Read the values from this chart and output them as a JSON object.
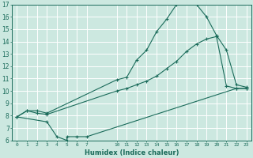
{
  "xlabel": "Humidex (Indice chaleur)",
  "bg_color": "#cce8e0",
  "line_color": "#1a6b5a",
  "grid_color": "#ffffff",
  "xlim": [
    -0.5,
    23.5
  ],
  "ylim": [
    6,
    17
  ],
  "xticks": [
    0,
    1,
    2,
    3,
    4,
    5,
    6,
    7,
    10,
    11,
    12,
    13,
    14,
    15,
    16,
    17,
    18,
    19,
    20,
    21,
    22,
    23
  ],
  "yticks": [
    6,
    7,
    8,
    9,
    10,
    11,
    12,
    13,
    14,
    15,
    16,
    17
  ],
  "line1_x": [
    0,
    1,
    2,
    3,
    10,
    11,
    12,
    13,
    14,
    15,
    16,
    17,
    18,
    19,
    20,
    21,
    22,
    23
  ],
  "line1_y": [
    7.9,
    8.4,
    8.4,
    8.2,
    10.9,
    11.1,
    12.5,
    13.3,
    14.8,
    15.8,
    17.0,
    17.1,
    17.0,
    16.0,
    14.5,
    13.3,
    10.5,
    10.3
  ],
  "line2_x": [
    0,
    1,
    2,
    3,
    10,
    11,
    12,
    13,
    14,
    15,
    16,
    17,
    18,
    19,
    20,
    21,
    22,
    23
  ],
  "line2_y": [
    7.9,
    8.4,
    8.2,
    8.1,
    10.0,
    10.2,
    10.5,
    10.8,
    11.2,
    11.8,
    12.4,
    13.2,
    13.8,
    14.2,
    14.4,
    10.4,
    10.2,
    10.2
  ],
  "line3_x": [
    0,
    3,
    4,
    5,
    5,
    6,
    7,
    22,
    23
  ],
  "line3_y": [
    7.9,
    7.5,
    6.3,
    6.0,
    6.3,
    6.3,
    6.3,
    10.2,
    10.2
  ]
}
